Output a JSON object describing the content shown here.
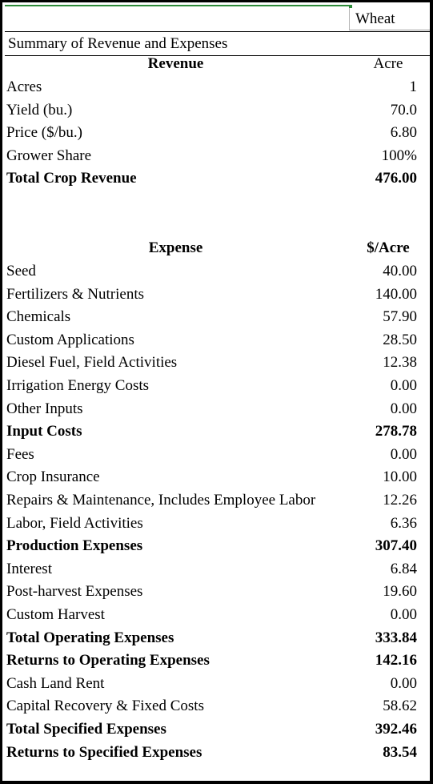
{
  "crop_label": "Wheat",
  "summary_title": "Summary of Revenue and Expenses",
  "revenue": {
    "header_label": "Revenue",
    "header_unit": "Acre",
    "rows": [
      {
        "label": "Acres",
        "value": "1"
      },
      {
        "label": "Yield (bu.)",
        "value": "70.0"
      },
      {
        "label": "Price ($/bu.)",
        "value": "6.80"
      },
      {
        "label": "Grower Share",
        "value": "100%"
      }
    ],
    "total_label": "Total Crop Revenue",
    "total_value": "476.00"
  },
  "expense": {
    "header_label": "Expense",
    "header_unit": "$/Acre",
    "rows": [
      {
        "label": "Seed",
        "value": "40.00",
        "bold": false
      },
      {
        "label": "Fertilizers & Nutrients",
        "value": "140.00",
        "bold": false
      },
      {
        "label": "Chemicals",
        "value": "57.90",
        "bold": false
      },
      {
        "label": "Custom Applications",
        "value": "28.50",
        "bold": false
      },
      {
        "label": "Diesel Fuel, Field Activities",
        "value": "12.38",
        "bold": false
      },
      {
        "label": "Irrigation Energy Costs",
        "value": "0.00",
        "bold": false
      },
      {
        "label": "Other Inputs",
        "value": "0.00",
        "bold": false
      },
      {
        "label": "Input Costs",
        "value": "278.78",
        "bold": true
      },
      {
        "label": "Fees",
        "value": "0.00",
        "bold": false
      },
      {
        "label": "Crop Insurance",
        "value": "10.00",
        "bold": false
      },
      {
        "label": "Repairs & Maintenance, Includes Employee Labor",
        "value": "12.26",
        "bold": false
      },
      {
        "label": "Labor, Field Activities",
        "value": "6.36",
        "bold": false
      },
      {
        "label": "Production Expenses",
        "value": "307.40",
        "bold": true
      },
      {
        "label": "Interest",
        "value": "6.84",
        "bold": false
      },
      {
        "label": "Post-harvest Expenses",
        "value": "19.60",
        "bold": false
      },
      {
        "label": "Custom Harvest",
        "value": "0.00",
        "bold": false
      },
      {
        "label": "Total Operating Expenses",
        "value": "333.84",
        "bold": true
      },
      {
        "label": "Returns to Operating Expenses",
        "value": "142.16",
        "bold": true
      },
      {
        "label": "Cash Land Rent",
        "value": "0.00",
        "bold": false
      },
      {
        "label": "Capital Recovery & Fixed Costs",
        "value": "58.62",
        "bold": false
      },
      {
        "label": "Total Specified Expenses",
        "value": "392.46",
        "bold": true
      },
      {
        "label": "Returns to Specified Expenses",
        "value": "83.54",
        "bold": true
      }
    ]
  }
}
